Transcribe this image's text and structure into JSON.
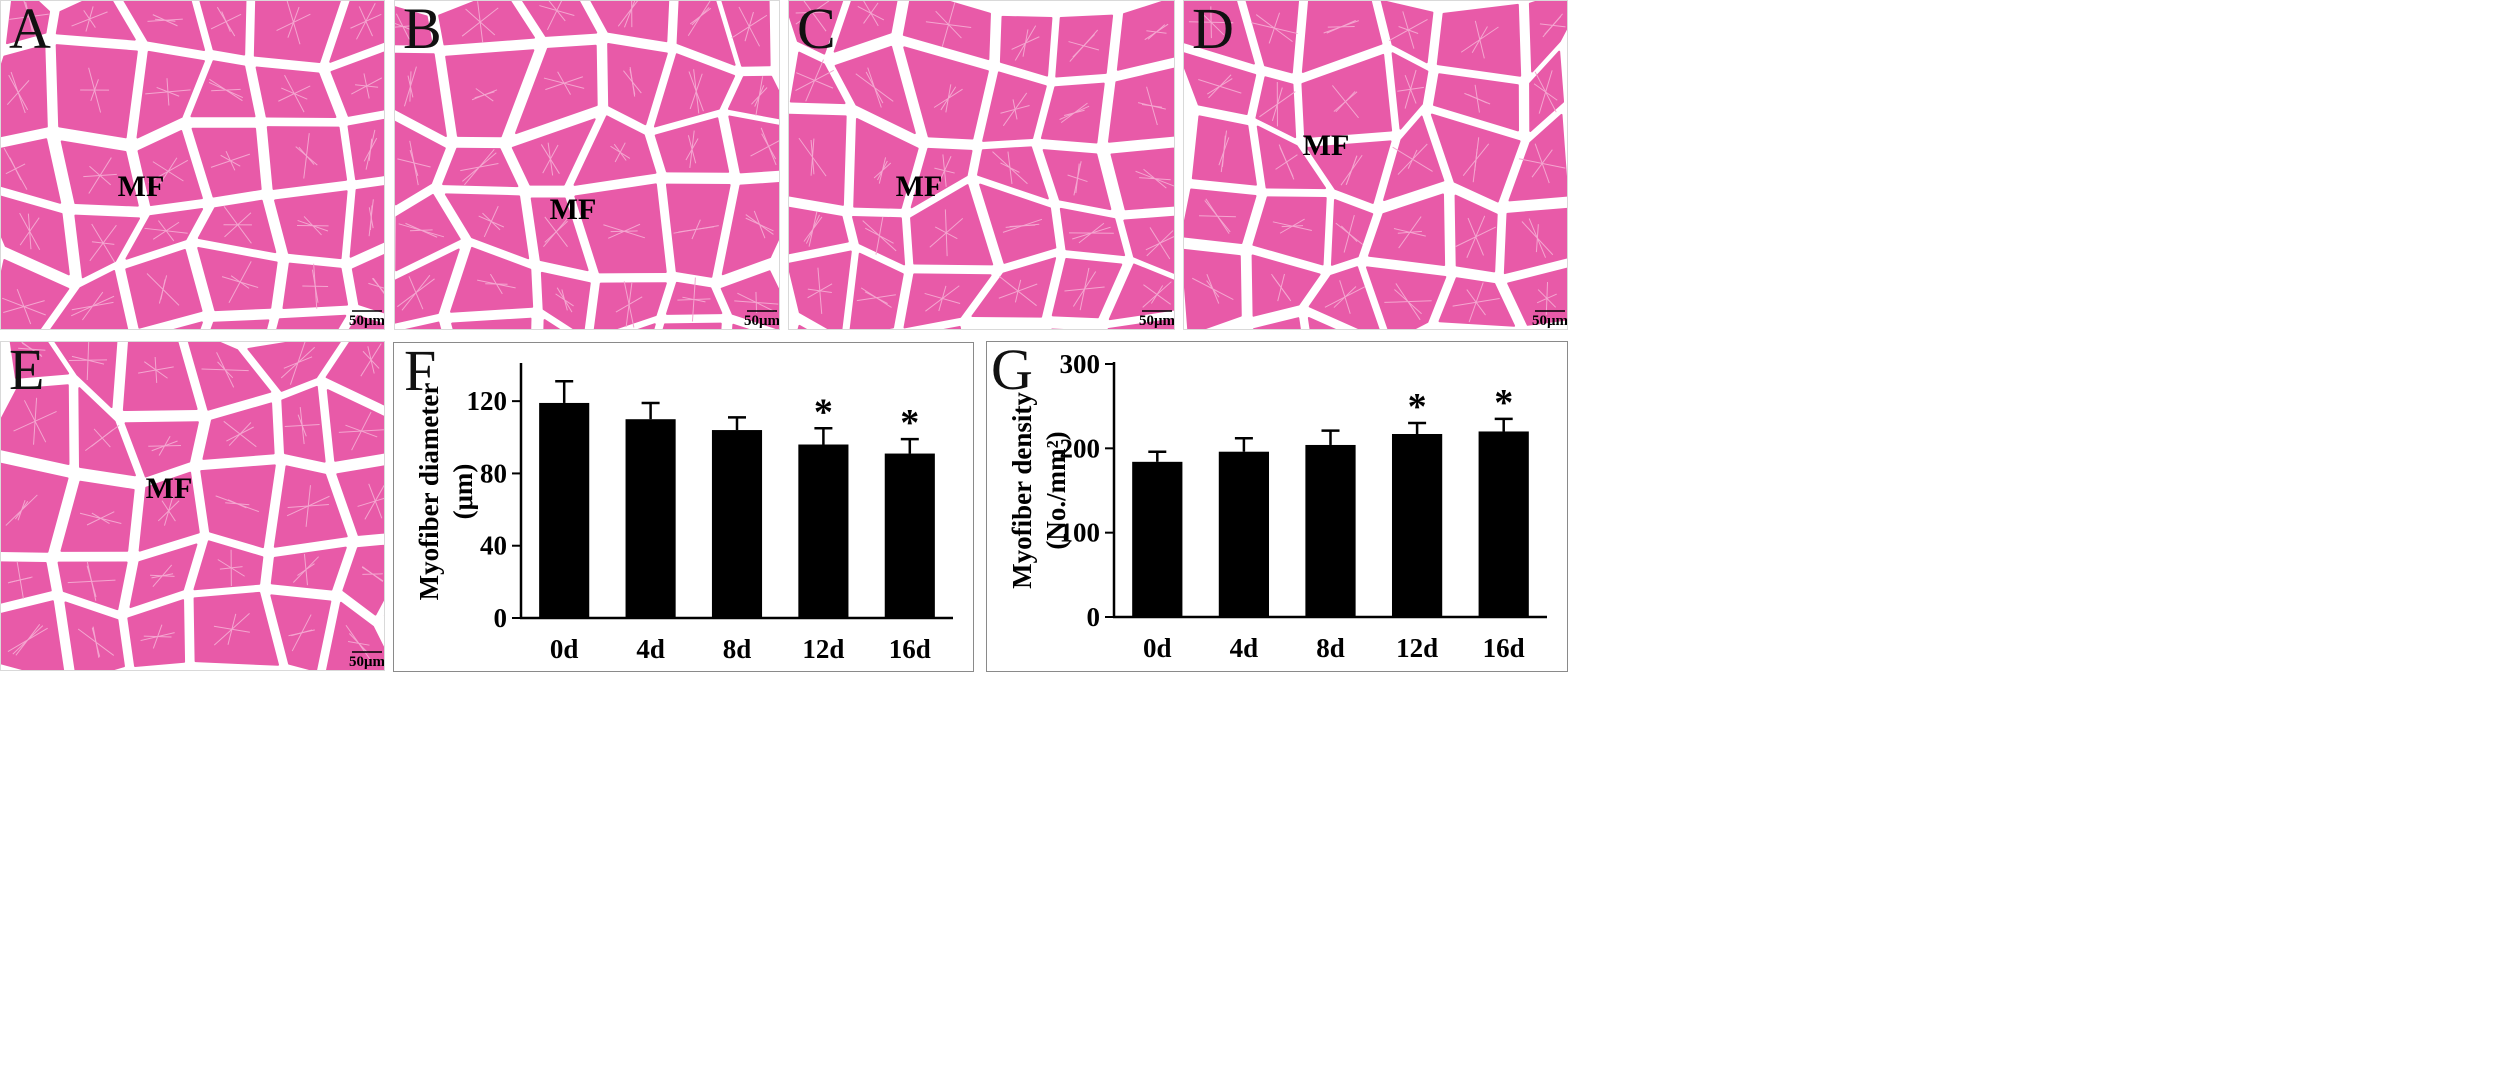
{
  "histology": {
    "panels": [
      {
        "letter": "A",
        "mf": "MF",
        "scale": "50μm"
      },
      {
        "letter": "B",
        "mf": "MF",
        "scale": "50μm"
      },
      {
        "letter": "C",
        "mf": "MF",
        "scale": "50μm"
      },
      {
        "letter": "D",
        "mf": "MF",
        "scale": "50μm"
      },
      {
        "letter": "E",
        "mf": "MF",
        "scale": "50μm"
      }
    ],
    "colors": {
      "tissue": "#e85aa8",
      "gap": "#ffffff",
      "striation": "#f4a6d0"
    }
  },
  "chart_data": [
    {
      "panel": "F",
      "type": "bar",
      "categories": [
        "0d",
        "4d",
        "8d",
        "12d",
        "16d"
      ],
      "values": [
        119,
        110,
        104,
        96,
        91
      ],
      "errors": [
        12,
        9,
        7,
        9,
        8
      ],
      "significant": [
        "",
        "",
        "",
        "*",
        "*"
      ],
      "ylabel_line1": "Myofiber diameter",
      "ylabel_line2": "(μm)",
      "yticks": [
        0,
        40,
        80,
        120
      ],
      "ylim": [
        0,
        140
      ],
      "bar_color": "#000000"
    },
    {
      "panel": "G",
      "type": "bar",
      "categories": [
        "0d",
        "4d",
        "8d",
        "12d",
        "16d"
      ],
      "values": [
        184,
        196,
        204,
        217,
        220
      ],
      "errors": [
        12,
        16,
        17,
        13,
        15
      ],
      "significant": [
        "",
        "",
        "",
        "*",
        "*"
      ],
      "ylabel_line1": "Myofiber density",
      "ylabel_line2": "(No./mm²)",
      "yticks": [
        0,
        100,
        200,
        300
      ],
      "ylim": [
        0,
        300
      ],
      "bar_color": "#000000"
    }
  ]
}
